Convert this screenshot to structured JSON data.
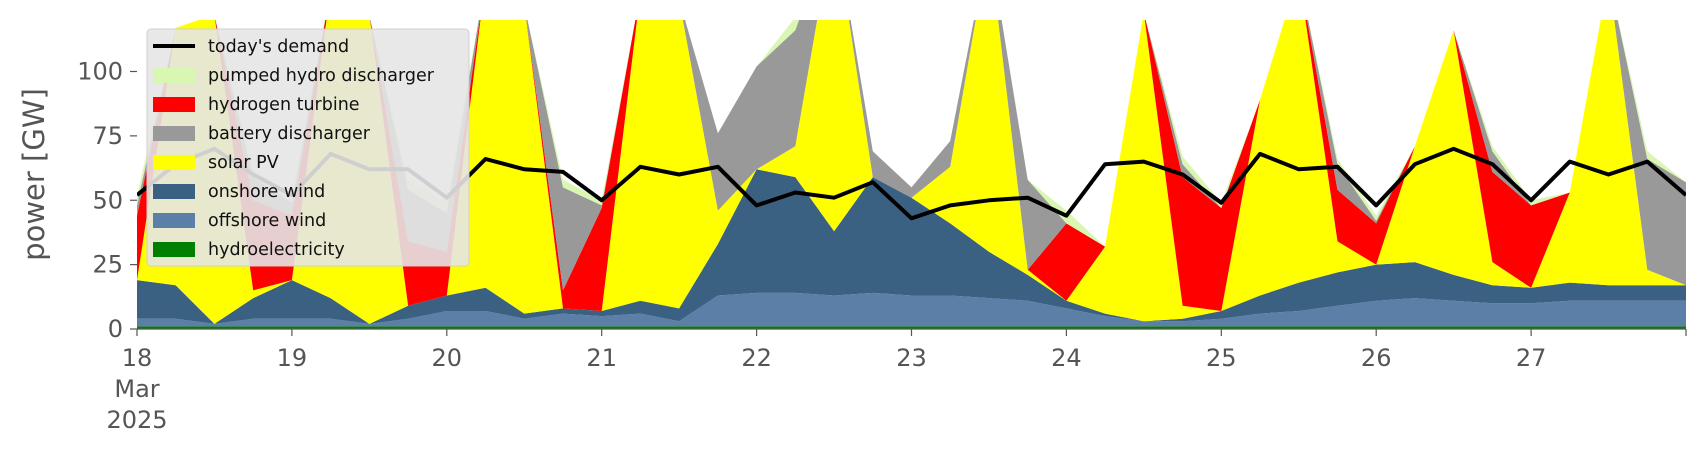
{
  "chart_data": {
    "type": "area",
    "title": "",
    "xlabel": "",
    "ylabel": "power [GW]",
    "x_unit": "day of March 2025",
    "xlim": [
      18,
      28
    ],
    "ylim": [
      0,
      120
    ],
    "y_ticks": [
      0,
      25,
      50,
      75,
      100
    ],
    "x_tick_labels": [
      "18\nMar\n2025",
      "19",
      "20",
      "21",
      "22",
      "23",
      "24",
      "25",
      "26",
      "27"
    ],
    "x_tick_values": [
      18,
      19,
      20,
      21,
      22,
      23,
      24,
      25,
      26,
      27
    ],
    "grid": false,
    "legend_position": "top-left",
    "x": [
      18.0,
      18.25,
      18.5,
      18.75,
      19.0,
      19.25,
      19.5,
      19.75,
      20.0,
      20.25,
      20.5,
      20.75,
      21.0,
      21.25,
      21.5,
      21.75,
      22.0,
      22.25,
      22.5,
      22.75,
      23.0,
      23.25,
      23.5,
      23.75,
      24.0,
      24.25,
      24.5,
      24.75,
      25.0,
      25.25,
      25.5,
      25.75,
      26.0,
      26.25,
      26.5,
      26.75,
      27.0,
      27.25,
      27.5,
      27.75,
      28.0
    ],
    "series": [
      {
        "name": "hydroelectricity",
        "color": "#008000",
        "kind": "area",
        "values": [
          1,
          1,
          1,
          1,
          1,
          1,
          1,
          1,
          1,
          1,
          1,
          1,
          1,
          1,
          1,
          1,
          1,
          1,
          1,
          1,
          1,
          1,
          1,
          1,
          1,
          1,
          1,
          1,
          1,
          1,
          1,
          1,
          1,
          1,
          1,
          1,
          1,
          1,
          1,
          1,
          1
        ]
      },
      {
        "name": "offshore wind",
        "color": "#5b7fa6",
        "kind": "area",
        "values": [
          3,
          3,
          1,
          3,
          3,
          3,
          1,
          3,
          6,
          6,
          3,
          5,
          4,
          5,
          2,
          12,
          13,
          13,
          12,
          13,
          12,
          12,
          11,
          10,
          7,
          4,
          2,
          2,
          3,
          5,
          6,
          8,
          10,
          11,
          10,
          9,
          9,
          10,
          10,
          10,
          10
        ]
      },
      {
        "name": "onshore wind",
        "color": "#3b6182",
        "kind": "area",
        "values": [
          15,
          13,
          0,
          8,
          15,
          8,
          0,
          5,
          6,
          9,
          2,
          2,
          2,
          5,
          5,
          20,
          48,
          45,
          25,
          45,
          38,
          28,
          18,
          10,
          3,
          1,
          0,
          1,
          3,
          7,
          11,
          13,
          14,
          14,
          10,
          7,
          6,
          7,
          6,
          6,
          6
        ]
      },
      {
        "name": "solar PV",
        "color": "#ffff00",
        "kind": "area",
        "values": [
          0,
          100,
          120,
          3,
          0,
          120,
          120,
          0,
          0,
          120,
          120,
          0,
          0,
          120,
          120,
          13,
          0,
          12,
          120,
          0,
          0,
          22,
          120,
          2,
          0,
          26,
          120,
          5,
          0,
          76,
          120,
          12,
          0,
          45,
          95,
          9,
          0,
          35,
          120,
          6,
          0
        ]
      },
      {
        "name": "hydrogen turbine",
        "color": "#ff0000",
        "kind": "area",
        "values": [
          25,
          0,
          0,
          35,
          25,
          0,
          0,
          25,
          17,
          0,
          0,
          7,
          40,
          0,
          0,
          0,
          0,
          0,
          0,
          0,
          0,
          0,
          0,
          0,
          30,
          0,
          0,
          50,
          40,
          0,
          0,
          20,
          16,
          0,
          0,
          35,
          32,
          0,
          0,
          0,
          0
        ]
      },
      {
        "name": "battery discharger",
        "color": "#999999",
        "kind": "area",
        "values": [
          4,
          0,
          0,
          9,
          5,
          0,
          0,
          20,
          15,
          0,
          0,
          40,
          1,
          0,
          0,
          30,
          40,
          45,
          0,
          10,
          4,
          10,
          0,
          35,
          0,
          0,
          0,
          5,
          0,
          0,
          0,
          10,
          1,
          0,
          0,
          8,
          0,
          0,
          0,
          43,
          40
        ]
      },
      {
        "name": "pumped hydro discharger",
        "color": "#d9f7b2",
        "kind": "area",
        "values": [
          4,
          0,
          0,
          3,
          3,
          0,
          0,
          4,
          4,
          0,
          0,
          3,
          2,
          0,
          0,
          0,
          0,
          5,
          0,
          0,
          0,
          0,
          0,
          0,
          5,
          0,
          0,
          3,
          2,
          0,
          0,
          2,
          2,
          0,
          0,
          2,
          2,
          0,
          0,
          3,
          0
        ]
      },
      {
        "name": "today's demand",
        "color": "#000000",
        "kind": "line",
        "values": [
          52,
          64,
          70,
          60,
          52,
          68,
          62,
          62,
          51,
          66,
          62,
          61,
          50,
          63,
          60,
          63,
          48,
          53,
          51,
          57,
          43,
          48,
          50,
          51,
          44,
          64,
          65,
          60,
          49,
          68,
          62,
          63,
          48,
          64,
          70,
          64,
          50,
          65,
          60,
          65,
          52
        ]
      }
    ],
    "legend_order": [
      "today's demand",
      "pumped hydro discharger",
      "hydrogen turbine",
      "battery discharger",
      "solar PV",
      "onshore wind",
      "offshore wind",
      "hydroelectricity"
    ]
  }
}
